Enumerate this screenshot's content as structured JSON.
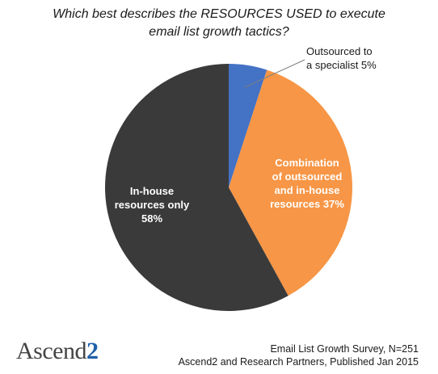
{
  "chart_data": {
    "type": "pie",
    "title": [
      "Which best describes the RESOURCES USED to execute",
      "email list growth tactics?"
    ],
    "slices": [
      {
        "label": [
          "Outsourced to",
          "a specialist 5%"
        ],
        "value": 5,
        "color": "#4472c4"
      },
      {
        "label": [
          "Combination",
          "of outsourced",
          "and in-house",
          "resources 37%"
        ],
        "value": 37,
        "color": "#f79646"
      },
      {
        "label": [
          "In-house",
          "resources only",
          "58%"
        ],
        "value": 58,
        "color": "#3a3a3a"
      }
    ]
  },
  "brand": {
    "word": "Ascend",
    "number": "2"
  },
  "source": {
    "line1": "Email List Growth Survey, N=251",
    "line2": "Ascend2 and Research Partners, Published Jan 2015"
  }
}
